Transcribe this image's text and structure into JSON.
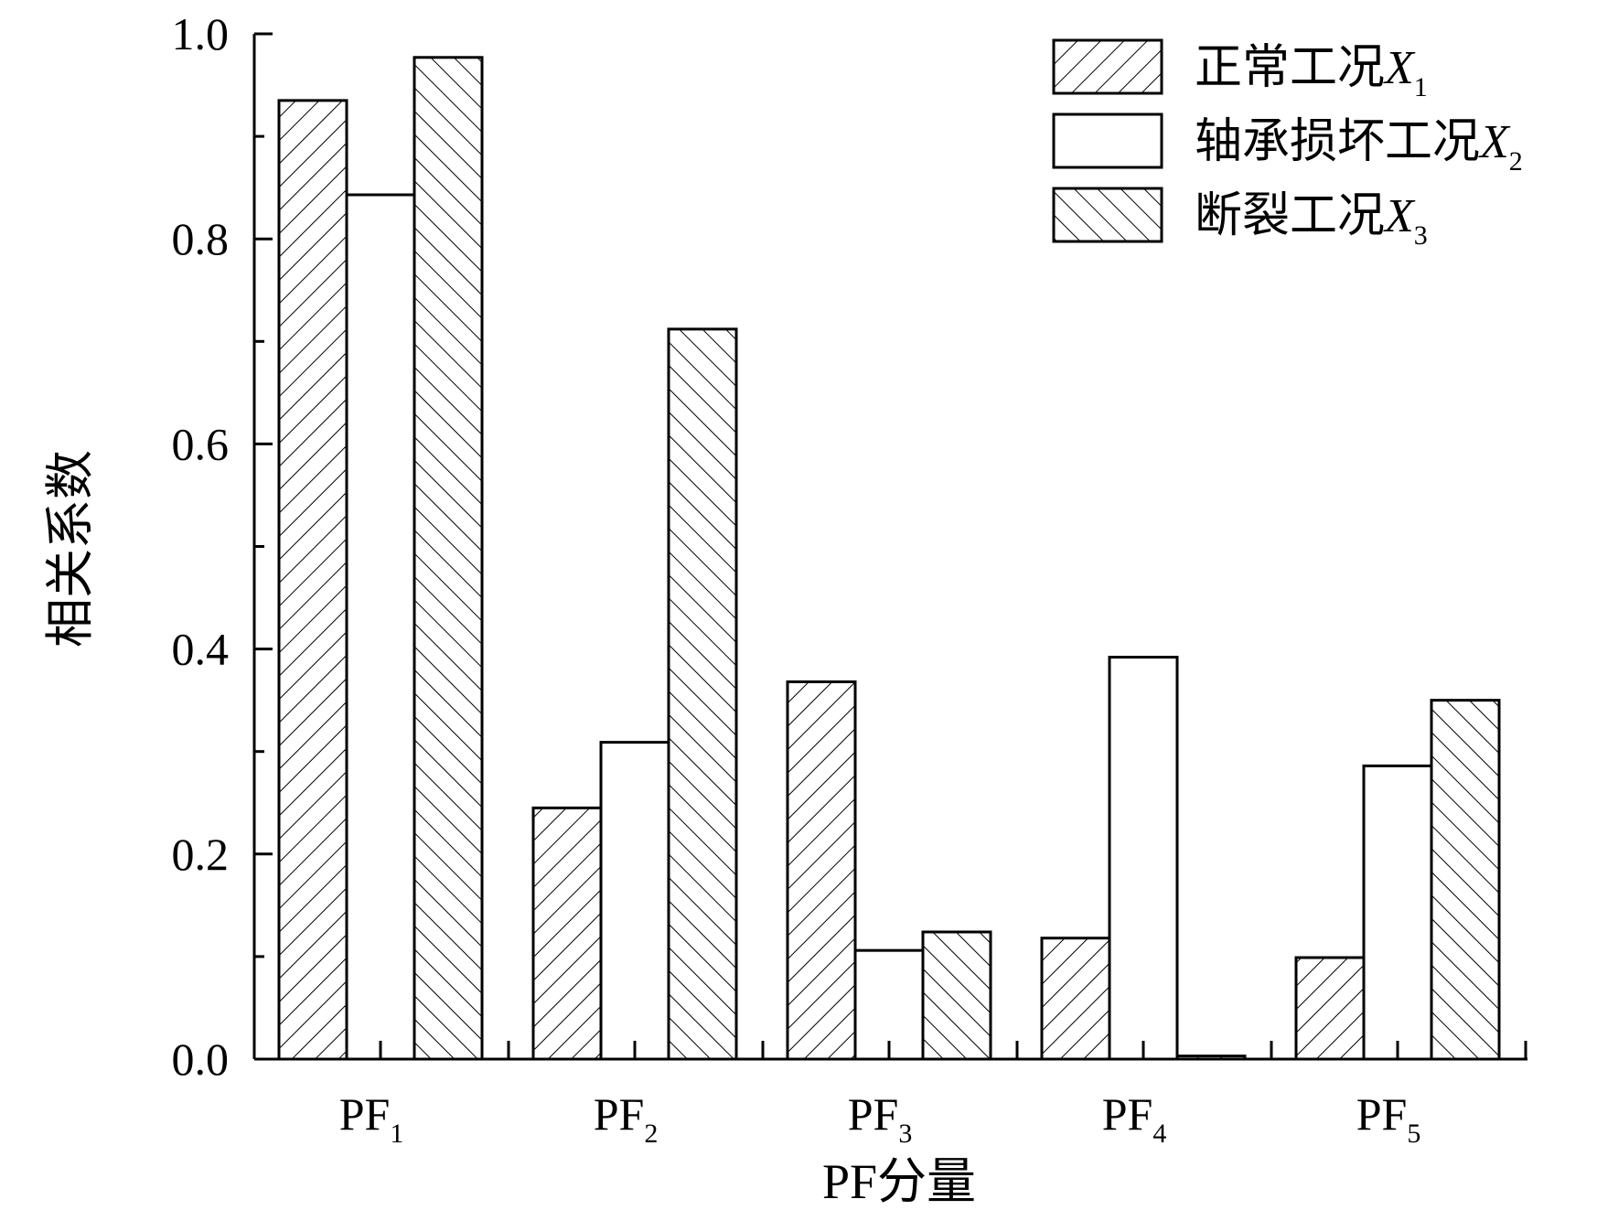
{
  "chart_data": {
    "type": "bar",
    "xlabel": "PF分量",
    "ylabel": "相关系数",
    "ylim": [
      0,
      1.0
    ],
    "yticks": [
      "0.0",
      "0.2",
      "0.4",
      "0.6",
      "0.8",
      "1.0"
    ],
    "categories": [
      {
        "base": "PF",
        "sub": "1"
      },
      {
        "base": "PF",
        "sub": "2"
      },
      {
        "base": "PF",
        "sub": "3"
      },
      {
        "base": "PF",
        "sub": "4"
      },
      {
        "base": "PF",
        "sub": "5"
      }
    ],
    "series": [
      {
        "name": "正常工况",
        "var": "X",
        "sub": "1",
        "pattern": "hatch-forward",
        "values": [
          0.935,
          0.245,
          0.368,
          0.118,
          0.099
        ]
      },
      {
        "name": "轴承损坏工况",
        "var": "X",
        "sub": "2",
        "pattern": "none",
        "values": [
          0.843,
          0.309,
          0.106,
          0.392,
          0.286
        ]
      },
      {
        "name": "断裂工况",
        "var": "X",
        "sub": "3",
        "pattern": "hatch-backward",
        "values": [
          0.977,
          0.712,
          0.124,
          0.003,
          0.35
        ]
      }
    ],
    "legend_position": "top-right",
    "grid": false
  }
}
